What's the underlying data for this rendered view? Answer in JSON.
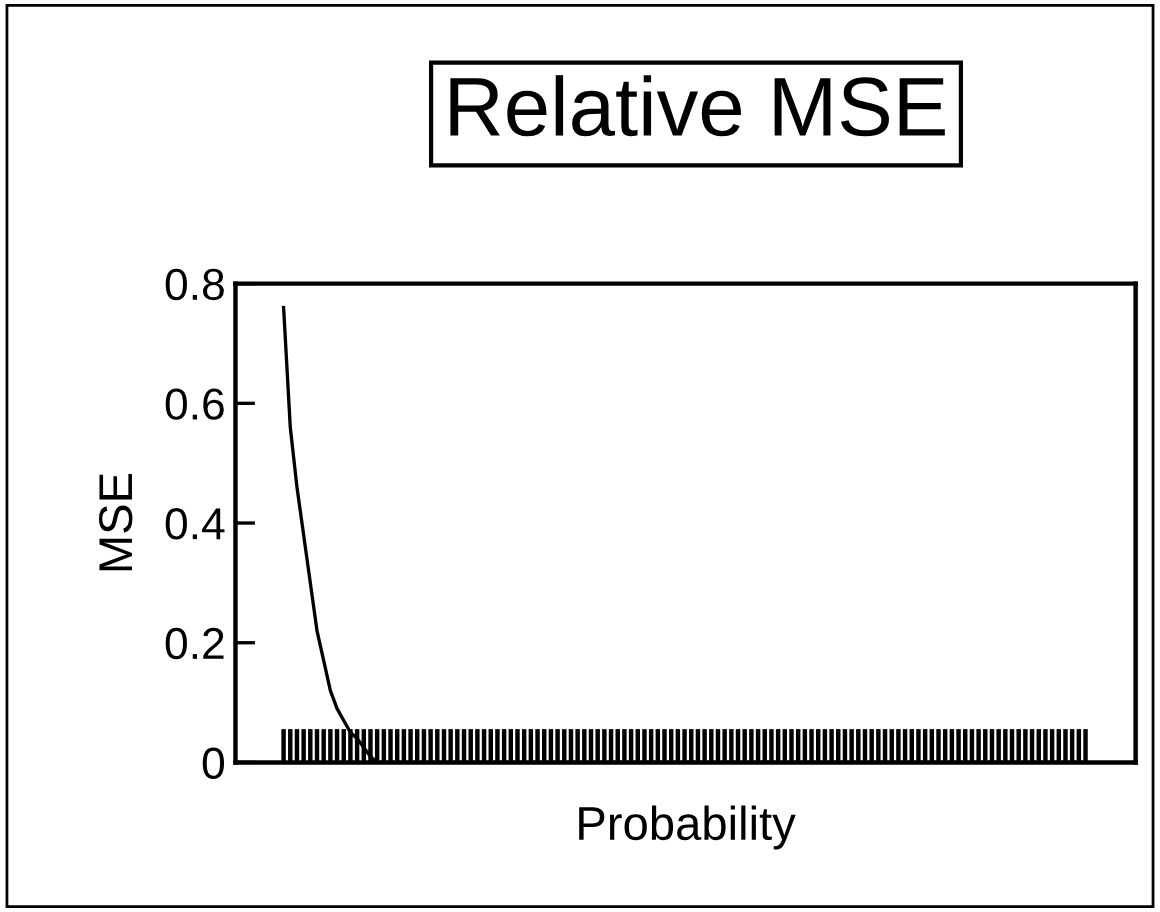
{
  "chart_data": {
    "type": "line",
    "title": "Relative MSE",
    "xlabel": "Probability",
    "ylabel": "MSE",
    "categories": [
      null,
      null,
      null,
      null,
      null,
      null,
      null,
      null,
      null,
      null,
      null,
      null,
      null,
      null,
      null,
      null,
      null,
      null,
      null,
      null,
      null,
      null,
      null,
      null,
      null,
      null,
      null,
      null,
      null,
      null,
      null,
      null,
      null,
      null,
      null,
      null,
      null,
      null,
      null,
      null,
      null,
      null,
      null,
      null,
      null,
      null,
      null,
      null,
      null,
      null,
      null,
      null,
      null,
      null,
      null,
      null,
      null,
      null,
      null,
      null,
      null,
      null,
      null,
      null,
      null,
      null,
      null,
      null,
      null,
      null,
      null,
      null,
      null,
      null,
      null,
      null,
      null,
      null,
      null,
      null,
      null,
      null,
      null,
      null,
      null,
      null,
      null,
      null,
      null,
      null,
      null,
      null,
      null,
      null,
      null,
      null,
      null,
      null,
      null,
      null,
      null,
      null,
      null,
      null,
      null,
      null,
      null,
      null,
      null,
      null,
      null,
      null,
      null,
      null,
      null,
      null,
      null,
      null,
      null,
      null,
      null
    ],
    "series": [
      {
        "color": "#000000",
        "values": [
          0.76,
          0.56,
          0.46,
          0.38,
          0.3,
          0.22,
          0.17,
          0.12,
          0.09,
          0.07,
          0.05,
          0.04,
          0.025,
          0.01,
          0,
          0,
          0,
          0,
          0,
          0,
          0,
          0,
          0,
          0,
          0,
          0,
          0,
          0,
          0,
          0,
          0,
          0,
          0,
          0,
          0,
          0,
          0,
          0,
          0,
          0,
          0,
          0,
          0,
          0,
          0,
          0,
          0,
          0,
          0,
          0,
          0,
          0,
          0,
          0,
          0,
          0,
          0,
          0,
          0,
          0,
          0,
          0,
          0,
          0,
          0,
          0,
          0,
          0,
          0,
          0,
          0,
          0,
          0,
          0,
          0,
          0,
          0,
          0,
          0,
          0,
          0,
          0,
          0,
          0,
          0,
          0,
          0,
          0,
          0,
          0,
          0,
          0,
          0,
          0,
          0,
          0,
          0,
          0,
          0,
          0,
          0,
          0,
          0,
          0,
          0,
          0,
          0,
          0,
          0,
          0,
          0,
          0,
          0,
          0,
          0,
          0,
          0,
          0,
          0,
          0,
          0
        ]
      }
    ],
    "ylim": [
      0,
      0.8
    ],
    "yticks": [
      0,
      0.2,
      0.4,
      0.6,
      0.8
    ],
    "marker": "none",
    "line_style": "solid",
    "grid": false,
    "legend": false
  }
}
